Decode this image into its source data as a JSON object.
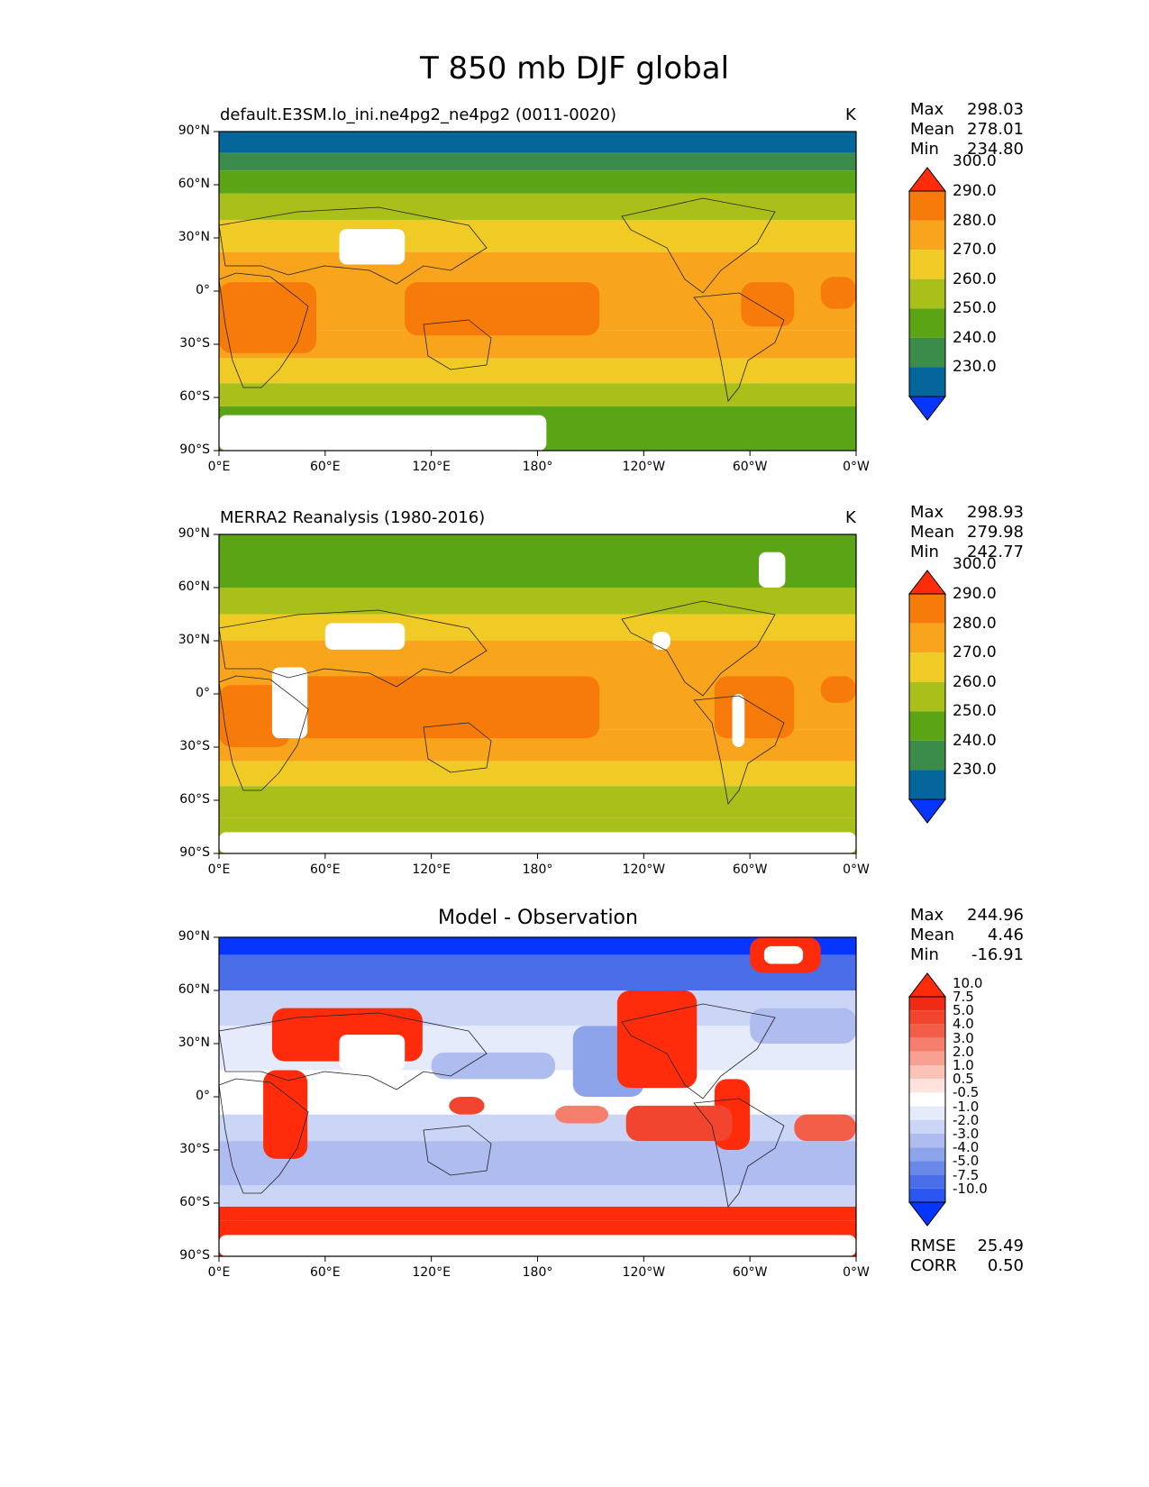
{
  "figure_title": "T 850 mb DJF global",
  "chart_data": [
    {
      "type": "heatmap",
      "title": "default.E3SM.lo_ini.ne4pg2_ne4pg2 (0011-0020)",
      "units": "K",
      "stats": {
        "max_label": "Max",
        "max": "298.03",
        "mean_label": "Mean",
        "mean": "278.01",
        "min_label": "Min",
        "min": "234.80"
      },
      "colorbar_levels": [
        "230.0",
        "240.0",
        "250.0",
        "260.0",
        "270.0",
        "280.0",
        "290.0",
        "300.0"
      ],
      "colorbar_colors": [
        "#0535ff",
        "#05669b",
        "#3b8c4b",
        "#5aa416",
        "#a8c019",
        "#f0cb25",
        "#f9a41d",
        "#f77b0a",
        "#ff2c0c"
      ],
      "lat_range": [
        -90,
        90
      ],
      "lon_range": [
        0,
        360
      ],
      "lat_bands": [
        {
          "lat": [
            78,
            90
          ],
          "value": 235
        },
        {
          "lat": [
            68,
            78
          ],
          "value": 245
        },
        {
          "lat": [
            55,
            68
          ],
          "value": 255
        },
        {
          "lat": [
            40,
            55
          ],
          "value": 265
        },
        {
          "lat": [
            22,
            40
          ],
          "value": 275
        },
        {
          "lat": [
            -22,
            22
          ],
          "value": 285
        },
        {
          "lat": [
            -38,
            -22
          ],
          "value": 282
        },
        {
          "lat": [
            -52,
            -38
          ],
          "value": 275
        },
        {
          "lat": [
            -65,
            -52
          ],
          "value": 265
        },
        {
          "lat": [
            -90,
            -65
          ],
          "value": 258
        }
      ],
      "warm_patches": [
        {
          "lon": [
            0,
            55
          ],
          "lat": [
            -35,
            5
          ],
          "value": 292
        },
        {
          "lon": [
            105,
            215
          ],
          "lat": [
            -25,
            5
          ],
          "value": 292
        },
        {
          "lon": [
            295,
            325
          ],
          "lat": [
            -20,
            5
          ],
          "value": 292
        },
        {
          "lon": [
            340,
            360
          ],
          "lat": [
            -10,
            8
          ],
          "value": 292
        }
      ],
      "missing": [
        {
          "lon": [
            68,
            105
          ],
          "lat": [
            15,
            35
          ]
        },
        {
          "lon": [
            0,
            185
          ],
          "lat": [
            -90,
            -70
          ]
        }
      ]
    },
    {
      "type": "heatmap",
      "title": "MERRA2 Reanalysis (1980-2016)",
      "units": "K",
      "stats": {
        "max_label": "Max",
        "max": "298.93",
        "mean_label": "Mean",
        "mean": "279.98",
        "min_label": "Min",
        "min": "242.77"
      },
      "colorbar_levels": [
        "230.0",
        "240.0",
        "250.0",
        "260.0",
        "270.0",
        "280.0",
        "290.0",
        "300.0"
      ],
      "colorbar_colors": [
        "#0535ff",
        "#05669b",
        "#3b8c4b",
        "#5aa416",
        "#a8c019",
        "#f0cb25",
        "#f9a41d",
        "#f77b0a",
        "#ff2c0c"
      ],
      "lat_range": [
        -90,
        90
      ],
      "lon_range": [
        0,
        360
      ],
      "lat_bands": [
        {
          "lat": [
            60,
            90
          ],
          "value": 255
        },
        {
          "lat": [
            45,
            60
          ],
          "value": 262
        },
        {
          "lat": [
            30,
            45
          ],
          "value": 272
        },
        {
          "lat": [
            -20,
            30
          ],
          "value": 285
        },
        {
          "lat": [
            -38,
            -20
          ],
          "value": 282
        },
        {
          "lat": [
            -52,
            -38
          ],
          "value": 275
        },
        {
          "lat": [
            -70,
            -52
          ],
          "value": 265
        },
        {
          "lat": [
            -90,
            -70
          ],
          "value": 262
        }
      ],
      "warm_patches": [
        {
          "lon": [
            0,
            40
          ],
          "lat": [
            -30,
            5
          ],
          "value": 292
        },
        {
          "lon": [
            40,
            215
          ],
          "lat": [
            -25,
            10
          ],
          "value": 292
        },
        {
          "lon": [
            280,
            325
          ],
          "lat": [
            -25,
            10
          ],
          "value": 292
        },
        {
          "lon": [
            340,
            360
          ],
          "lat": [
            -5,
            10
          ],
          "value": 292
        }
      ],
      "missing": [
        {
          "lon": [
            60,
            105
          ],
          "lat": [
            25,
            40
          ]
        },
        {
          "lon": [
            30,
            50
          ],
          "lat": [
            -25,
            15
          ]
        },
        {
          "lon": [
            245,
            255
          ],
          "lat": [
            25,
            35
          ]
        },
        {
          "lon": [
            290,
            297
          ],
          "lat": [
            -30,
            0
          ]
        },
        {
          "lon": [
            305,
            320
          ],
          "lat": [
            60,
            80
          ]
        },
        {
          "lon": [
            0,
            360
          ],
          "lat": [
            -90,
            -78
          ]
        }
      ]
    },
    {
      "type": "heatmap",
      "title": "Model - Observation",
      "units": "",
      "stats": {
        "max_label": "Max",
        "max": "244.96",
        "mean_label": "Mean",
        "mean": "4.46",
        "min_label": "Min",
        "min": "-16.91"
      },
      "colorbar_levels": [
        "-10.0",
        "-7.5",
        "-5.0",
        "-4.0",
        "-3.0",
        "-2.0",
        "-1.0",
        "-0.5",
        "0.5",
        "1.0",
        "2.0",
        "3.0",
        "4.0",
        "5.0",
        "7.5",
        "10.0"
      ],
      "colorbar_colors": [
        "#0535ff",
        "#2c56f0",
        "#4a6ee8",
        "#6a88e8",
        "#8da3ea",
        "#aebcf0",
        "#cbd5f5",
        "#e6ebfb",
        "#ffffff",
        "#fde2dd",
        "#fbc3b8",
        "#f8a193",
        "#f57f6c",
        "#f35e48",
        "#f2452f",
        "#f02a15",
        "#ff2c0c"
      ],
      "lat_range": [
        -90,
        90
      ],
      "lon_range": [
        0,
        360
      ],
      "lat_bands": [
        {
          "lat": [
            80,
            90
          ],
          "value": -12
        },
        {
          "lat": [
            60,
            80
          ],
          "value": -6
        },
        {
          "lat": [
            40,
            60
          ],
          "value": -1.5
        },
        {
          "lat": [
            15,
            40
          ],
          "value": -0.7
        },
        {
          "lat": [
            -10,
            15
          ],
          "value": 0
        },
        {
          "lat": [
            -25,
            -10
          ],
          "value": -1.5
        },
        {
          "lat": [
            -50,
            -25
          ],
          "value": -3
        },
        {
          "lat": [
            -62,
            -50
          ],
          "value": -1.5
        },
        {
          "lat": [
            -70,
            -62
          ],
          "value": 12
        },
        {
          "lat": [
            -90,
            -70
          ],
          "value": 12
        }
      ],
      "warm_patches": [
        {
          "lon": [
            30,
            115
          ],
          "lat": [
            20,
            50
          ],
          "value": 12
        },
        {
          "lon": [
            25,
            50
          ],
          "lat": [
            -35,
            15
          ],
          "value": 12
        },
        {
          "lon": [
            225,
            270
          ],
          "lat": [
            5,
            60
          ],
          "value": 12
        },
        {
          "lon": [
            280,
            300
          ],
          "lat": [
            -30,
            10
          ],
          "value": 12
        },
        {
          "lon": [
            230,
            290
          ],
          "lat": [
            -25,
            -5
          ],
          "value": 6
        },
        {
          "lon": [
            300,
            340
          ],
          "lat": [
            70,
            90
          ],
          "value": 12
        },
        {
          "lon": [
            130,
            150
          ],
          "lat": [
            -10,
            0
          ],
          "value": 6
        },
        {
          "lon": [
            325,
            360
          ],
          "lat": [
            -25,
            -10
          ],
          "value": 4
        },
        {
          "lon": [
            190,
            220
          ],
          "lat": [
            -15,
            -5
          ],
          "value": 3
        }
      ],
      "cool_patches": [
        {
          "lon": [
            200,
            240
          ],
          "lat": [
            0,
            40
          ],
          "value": -4
        },
        {
          "lon": [
            120,
            190
          ],
          "lat": [
            10,
            25
          ],
          "value": -3
        },
        {
          "lon": [
            300,
            360
          ],
          "lat": [
            30,
            50
          ],
          "value": -3
        }
      ],
      "missing": [
        {
          "lon": [
            68,
            105
          ],
          "lat": [
            15,
            35
          ]
        },
        {
          "lon": [
            308,
            330
          ],
          "lat": [
            75,
            85
          ]
        },
        {
          "lon": [
            0,
            360
          ],
          "lat": [
            -90,
            -78
          ]
        }
      ],
      "metrics": {
        "rmse_label": "RMSE",
        "rmse": "25.49",
        "corr_label": "CORR",
        "corr": "0.50"
      }
    }
  ],
  "axes": {
    "y_ticks": [
      "90°N",
      "60°N",
      "30°N",
      "0°",
      "30°S",
      "60°S",
      "90°S"
    ],
    "y_values": [
      90,
      60,
      30,
      0,
      -30,
      -60,
      -90
    ],
    "x_ticks": [
      "0°E",
      "60°E",
      "120°E",
      "180°",
      "120°W",
      "60°W",
      "0°W"
    ],
    "x_values": [
      0,
      60,
      120,
      180,
      240,
      300,
      360
    ]
  }
}
